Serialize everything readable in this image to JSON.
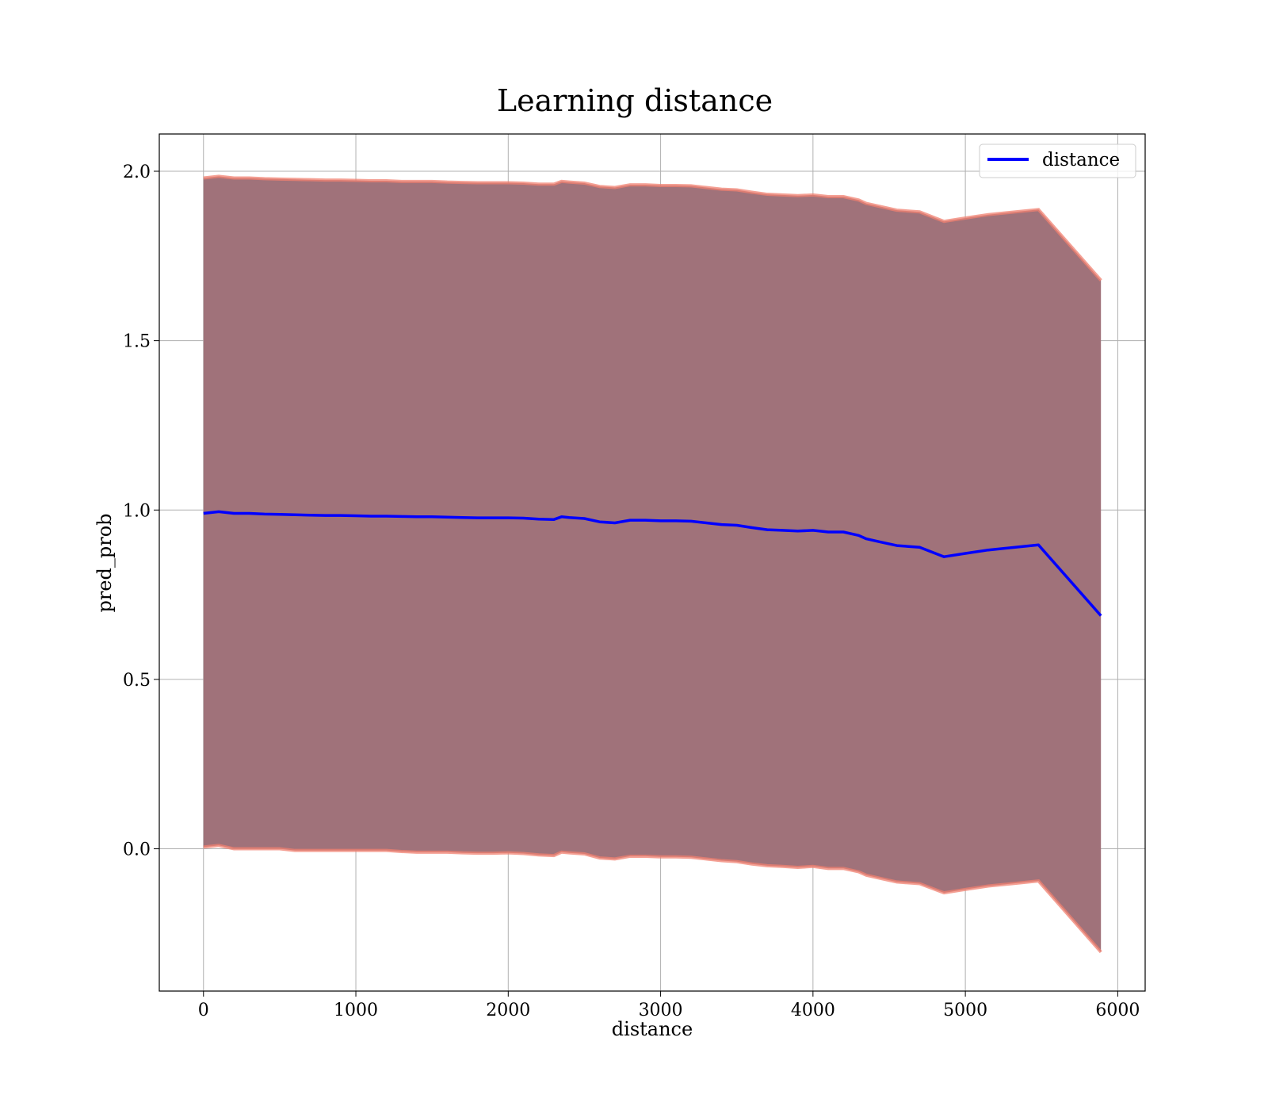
{
  "chart_data": {
    "type": "line",
    "title": "Learning distance",
    "xlabel": "distance",
    "ylabel": "pred_prob",
    "xlim": [
      -290,
      6180
    ],
    "ylim": [
      -0.42,
      2.11
    ],
    "x_ticks": [
      0,
      1000,
      2000,
      3000,
      4000,
      5000,
      6000
    ],
    "x_tick_labels": [
      "0",
      "1000",
      "2000",
      "3000",
      "4000",
      "5000",
      "6000"
    ],
    "y_ticks": [
      0.0,
      0.5,
      1.0,
      1.5,
      2.0
    ],
    "y_tick_labels": [
      "0.0",
      "0.5",
      "1.0",
      "1.5",
      "2.0"
    ],
    "grid": true,
    "legend": {
      "position": "top-right",
      "entries": [
        "distance"
      ]
    },
    "colors": {
      "line": "#0000ff",
      "band_fill": "#a0727a",
      "band_edge": "#f08070"
    },
    "series": [
      {
        "name": "distance",
        "x": [
          0,
          100,
          200,
          300,
          400,
          500,
          600,
          700,
          800,
          900,
          1000,
          1100,
          1200,
          1300,
          1400,
          1500,
          1600,
          1700,
          1800,
          1900,
          2000,
          2100,
          2200,
          2300,
          2350,
          2400,
          2500,
          2600,
          2700,
          2800,
          2900,
          3000,
          3100,
          3200,
          3300,
          3400,
          3500,
          3600,
          3700,
          3800,
          3900,
          4000,
          4100,
          4200,
          4300,
          4350,
          4450,
          4550,
          4700,
          4860,
          5000,
          5150,
          5480,
          5890
        ],
        "y": [
          0.99,
          0.995,
          0.99,
          0.99,
          0.988,
          0.987,
          0.986,
          0.985,
          0.984,
          0.984,
          0.983,
          0.982,
          0.982,
          0.981,
          0.98,
          0.98,
          0.979,
          0.978,
          0.977,
          0.977,
          0.977,
          0.976,
          0.973,
          0.972,
          0.98,
          0.978,
          0.975,
          0.965,
          0.962,
          0.97,
          0.97,
          0.968,
          0.968,
          0.967,
          0.962,
          0.957,
          0.955,
          0.948,
          0.942,
          0.94,
          0.938,
          0.94,
          0.935,
          0.935,
          0.925,
          0.915,
          0.905,
          0.895,
          0.89,
          0.862,
          0.872,
          0.882,
          0.897,
          0.688
        ],
        "band_lower": [
          0.005,
          0.01,
          0.0,
          0.0,
          0.0,
          0.0,
          -0.005,
          -0.005,
          -0.005,
          -0.005,
          -0.005,
          -0.005,
          -0.005,
          -0.008,
          -0.01,
          -0.01,
          -0.01,
          -0.012,
          -0.013,
          -0.013,
          -0.012,
          -0.014,
          -0.018,
          -0.02,
          -0.01,
          -0.012,
          -0.015,
          -0.027,
          -0.03,
          -0.022,
          -0.022,
          -0.024,
          -0.024,
          -0.025,
          -0.03,
          -0.035,
          -0.038,
          -0.045,
          -0.05,
          -0.052,
          -0.055,
          -0.052,
          -0.058,
          -0.058,
          -0.068,
          -0.078,
          -0.088,
          -0.098,
          -0.103,
          -0.13,
          -0.12,
          -0.11,
          -0.095,
          -0.305
        ],
        "band_upper": [
          1.98,
          1.985,
          1.98,
          1.98,
          1.978,
          1.977,
          1.976,
          1.975,
          1.974,
          1.974,
          1.973,
          1.972,
          1.972,
          1.97,
          1.97,
          1.97,
          1.968,
          1.967,
          1.966,
          1.966,
          1.966,
          1.965,
          1.962,
          1.962,
          1.97,
          1.968,
          1.965,
          1.955,
          1.952,
          1.96,
          1.96,
          1.958,
          1.958,
          1.957,
          1.952,
          1.947,
          1.945,
          1.938,
          1.932,
          1.93,
          1.928,
          1.93,
          1.925,
          1.925,
          1.915,
          1.905,
          1.895,
          1.885,
          1.88,
          1.852,
          1.862,
          1.872,
          1.887,
          1.678
        ]
      }
    ]
  }
}
